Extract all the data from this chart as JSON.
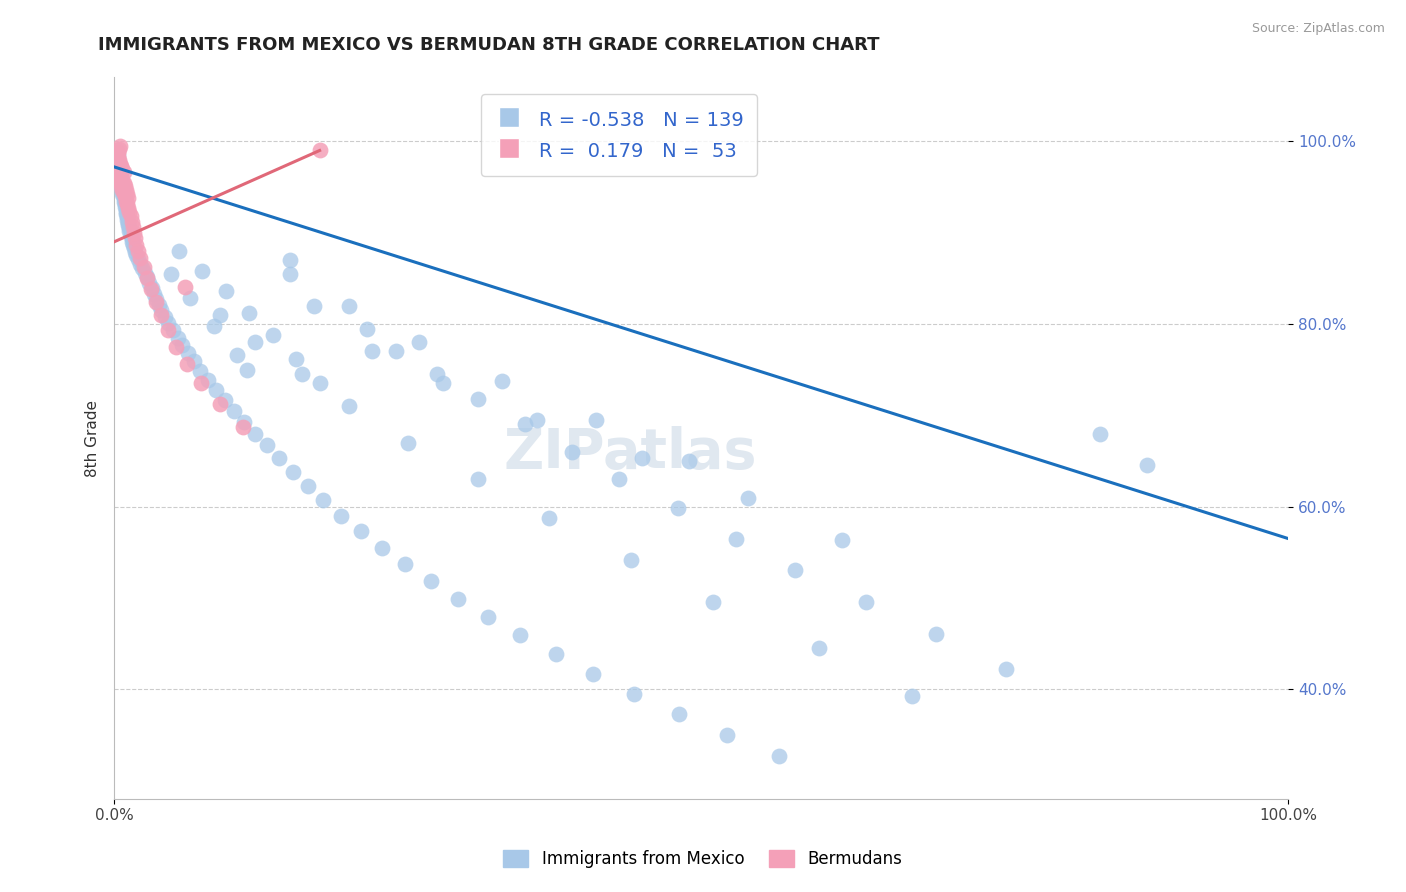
{
  "title": "IMMIGRANTS FROM MEXICO VS BERMUDAN 8TH GRADE CORRELATION CHART",
  "source": "Source: ZipAtlas.com",
  "ylabel": "8th Grade",
  "blue_R": -0.538,
  "blue_N": 139,
  "pink_R": 0.179,
  "pink_N": 53,
  "blue_color": "#a8c8e8",
  "pink_color": "#f4a0b8",
  "blue_line_color": "#1a6fbd",
  "pink_line_color": "#e06878",
  "legend_blue_label": "Immigrants from Mexico",
  "legend_pink_label": "Bermudans",
  "watermark": "ZIPatlas",
  "xlim": [
    0.0,
    1.0
  ],
  "ylim": [
    0.28,
    1.07
  ],
  "yticks": [
    0.4,
    0.6,
    0.8,
    1.0
  ],
  "ytick_labels": [
    "40.0%",
    "60.0%",
    "80.0%",
    "100.0%"
  ],
  "xticks": [
    0.0,
    1.0
  ],
  "xtick_labels": [
    "0.0%",
    "100.0%"
  ],
  "blue_line_x": [
    0.0,
    1.0
  ],
  "blue_line_y": [
    0.972,
    0.565
  ],
  "pink_line_x": [
    0.0,
    0.175
  ],
  "pink_line_y": [
    0.89,
    0.99
  ],
  "blue_scatter_x": [
    0.002,
    0.003,
    0.003,
    0.003,
    0.004,
    0.004,
    0.004,
    0.004,
    0.005,
    0.005,
    0.005,
    0.005,
    0.006,
    0.006,
    0.006,
    0.007,
    0.007,
    0.007,
    0.008,
    0.008,
    0.008,
    0.009,
    0.009,
    0.01,
    0.01,
    0.01,
    0.011,
    0.011,
    0.012,
    0.012,
    0.013,
    0.013,
    0.014,
    0.014,
    0.015,
    0.015,
    0.016,
    0.017,
    0.018,
    0.019,
    0.02,
    0.022,
    0.024,
    0.026,
    0.028,
    0.03,
    0.032,
    0.034,
    0.036,
    0.038,
    0.04,
    0.043,
    0.046,
    0.05,
    0.054,
    0.058,
    0.063,
    0.068,
    0.073,
    0.08,
    0.087,
    0.094,
    0.102,
    0.111,
    0.12,
    0.13,
    0.14,
    0.152,
    0.165,
    0.178,
    0.193,
    0.21,
    0.228,
    0.248,
    0.27,
    0.293,
    0.318,
    0.346,
    0.376,
    0.408,
    0.443,
    0.481,
    0.522,
    0.566,
    0.113,
    0.15,
    0.17,
    0.215,
    0.24,
    0.275,
    0.31,
    0.35,
    0.39,
    0.43,
    0.48,
    0.53,
    0.58,
    0.64,
    0.7,
    0.76,
    0.09,
    0.12,
    0.16,
    0.2,
    0.25,
    0.31,
    0.37,
    0.44,
    0.51,
    0.6,
    0.68,
    0.15,
    0.2,
    0.26,
    0.33,
    0.41,
    0.49,
    0.22,
    0.28,
    0.36,
    0.45,
    0.54,
    0.62,
    0.055,
    0.075,
    0.095,
    0.115,
    0.135,
    0.155,
    0.175,
    0.048,
    0.065,
    0.085,
    0.105,
    0.84,
    0.88
  ],
  "blue_scatter_y": [
    0.99,
    0.985,
    0.98,
    0.978,
    0.975,
    0.973,
    0.97,
    0.968,
    0.966,
    0.963,
    0.961,
    0.958,
    0.956,
    0.953,
    0.95,
    0.948,
    0.945,
    0.942,
    0.94,
    0.937,
    0.934,
    0.931,
    0.928,
    0.926,
    0.923,
    0.92,
    0.917,
    0.914,
    0.911,
    0.908,
    0.905,
    0.902,
    0.899,
    0.896,
    0.893,
    0.89,
    0.887,
    0.883,
    0.879,
    0.875,
    0.871,
    0.866,
    0.861,
    0.856,
    0.851,
    0.845,
    0.839,
    0.833,
    0.827,
    0.821,
    0.815,
    0.808,
    0.801,
    0.793,
    0.785,
    0.777,
    0.768,
    0.759,
    0.749,
    0.739,
    0.728,
    0.717,
    0.705,
    0.693,
    0.68,
    0.667,
    0.653,
    0.638,
    0.623,
    0.607,
    0.59,
    0.573,
    0.555,
    0.537,
    0.518,
    0.499,
    0.479,
    0.459,
    0.438,
    0.417,
    0.395,
    0.373,
    0.35,
    0.327,
    0.75,
    0.87,
    0.82,
    0.795,
    0.77,
    0.745,
    0.718,
    0.69,
    0.66,
    0.63,
    0.598,
    0.565,
    0.531,
    0.496,
    0.46,
    0.422,
    0.81,
    0.78,
    0.745,
    0.71,
    0.67,
    0.63,
    0.587,
    0.542,
    0.495,
    0.445,
    0.392,
    0.855,
    0.82,
    0.78,
    0.738,
    0.695,
    0.65,
    0.77,
    0.735,
    0.695,
    0.653,
    0.609,
    0.563,
    0.88,
    0.858,
    0.836,
    0.812,
    0.788,
    0.762,
    0.735,
    0.855,
    0.828,
    0.798,
    0.766,
    0.68,
    0.645
  ],
  "pink_scatter_x": [
    0.002,
    0.002,
    0.003,
    0.003,
    0.003,
    0.004,
    0.004,
    0.004,
    0.005,
    0.005,
    0.005,
    0.006,
    0.006,
    0.006,
    0.007,
    0.007,
    0.007,
    0.008,
    0.008,
    0.008,
    0.009,
    0.009,
    0.01,
    0.01,
    0.011,
    0.011,
    0.012,
    0.012,
    0.013,
    0.014,
    0.015,
    0.016,
    0.017,
    0.018,
    0.019,
    0.02,
    0.022,
    0.025,
    0.028,
    0.031,
    0.036,
    0.04,
    0.046,
    0.053,
    0.062,
    0.074,
    0.09,
    0.11,
    0.003,
    0.004,
    0.005,
    0.175,
    0.06
  ],
  "pink_scatter_y": [
    0.965,
    0.978,
    0.962,
    0.972,
    0.983,
    0.958,
    0.968,
    0.98,
    0.955,
    0.966,
    0.975,
    0.951,
    0.962,
    0.973,
    0.947,
    0.958,
    0.97,
    0.943,
    0.954,
    0.966,
    0.94,
    0.951,
    0.935,
    0.947,
    0.931,
    0.942,
    0.927,
    0.938,
    0.923,
    0.918,
    0.912,
    0.906,
    0.9,
    0.894,
    0.887,
    0.88,
    0.872,
    0.862,
    0.85,
    0.838,
    0.824,
    0.81,
    0.793,
    0.775,
    0.756,
    0.735,
    0.712,
    0.687,
    0.987,
    0.992,
    0.995,
    0.99,
    0.84
  ]
}
